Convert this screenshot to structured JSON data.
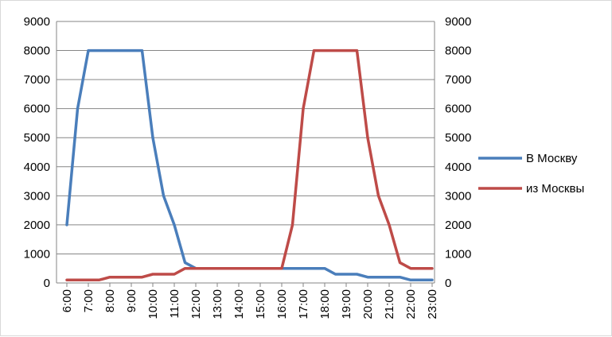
{
  "chart_data": {
    "type": "line",
    "x": [
      "6:00",
      "6:30",
      "7:00",
      "7:30",
      "8:00",
      "8:30",
      "9:00",
      "9:30",
      "10:00",
      "10:30",
      "11:00",
      "11:30",
      "12:00",
      "12:30",
      "13:00",
      "13:30",
      "14:00",
      "14:30",
      "15:00",
      "15:30",
      "16:00",
      "16:30",
      "17:00",
      "17:30",
      "18:00",
      "18:30",
      "19:00",
      "19:30",
      "20:00",
      "20:30",
      "21:00",
      "21:30",
      "22:00",
      "22:30",
      "23:00"
    ],
    "x_tick_labels": [
      "6:00",
      "7:00",
      "8:00",
      "9:00",
      "10:00",
      "11:00",
      "12:00",
      "13:00",
      "14:00",
      "15:00",
      "16:00",
      "17:00",
      "18:00",
      "19:00",
      "20:00",
      "21:00",
      "22:00",
      "23:00"
    ],
    "series": [
      {
        "name": "В Москву",
        "color": "#4a7ebb",
        "values": [
          2000,
          6000,
          8000,
          8000,
          8000,
          8000,
          8000,
          8000,
          5000,
          3000,
          2000,
          700,
          500,
          500,
          500,
          500,
          500,
          500,
          500,
          500,
          500,
          500,
          500,
          500,
          500,
          300,
          300,
          300,
          200,
          200,
          200,
          200,
          100,
          100,
          100
        ]
      },
      {
        "name": "из Москвы",
        "color": "#be4b48",
        "values": [
          100,
          100,
          100,
          100,
          200,
          200,
          200,
          200,
          300,
          300,
          300,
          500,
          500,
          500,
          500,
          500,
          500,
          500,
          500,
          500,
          500,
          2000,
          6000,
          8000,
          8000,
          8000,
          8000,
          8000,
          5000,
          3000,
          2000,
          700,
          500,
          500,
          500
        ]
      }
    ],
    "ylim": [
      0,
      9000
    ],
    "y_ticks": [
      0,
      1000,
      2000,
      3000,
      4000,
      5000,
      6000,
      7000,
      8000,
      9000
    ],
    "y2_ticks": [
      0,
      1000,
      2000,
      3000,
      4000,
      5000,
      6000,
      7000,
      8000,
      9000
    ],
    "grid": true,
    "legend_position": "right",
    "title": "",
    "xlabel": "",
    "ylabel": ""
  }
}
